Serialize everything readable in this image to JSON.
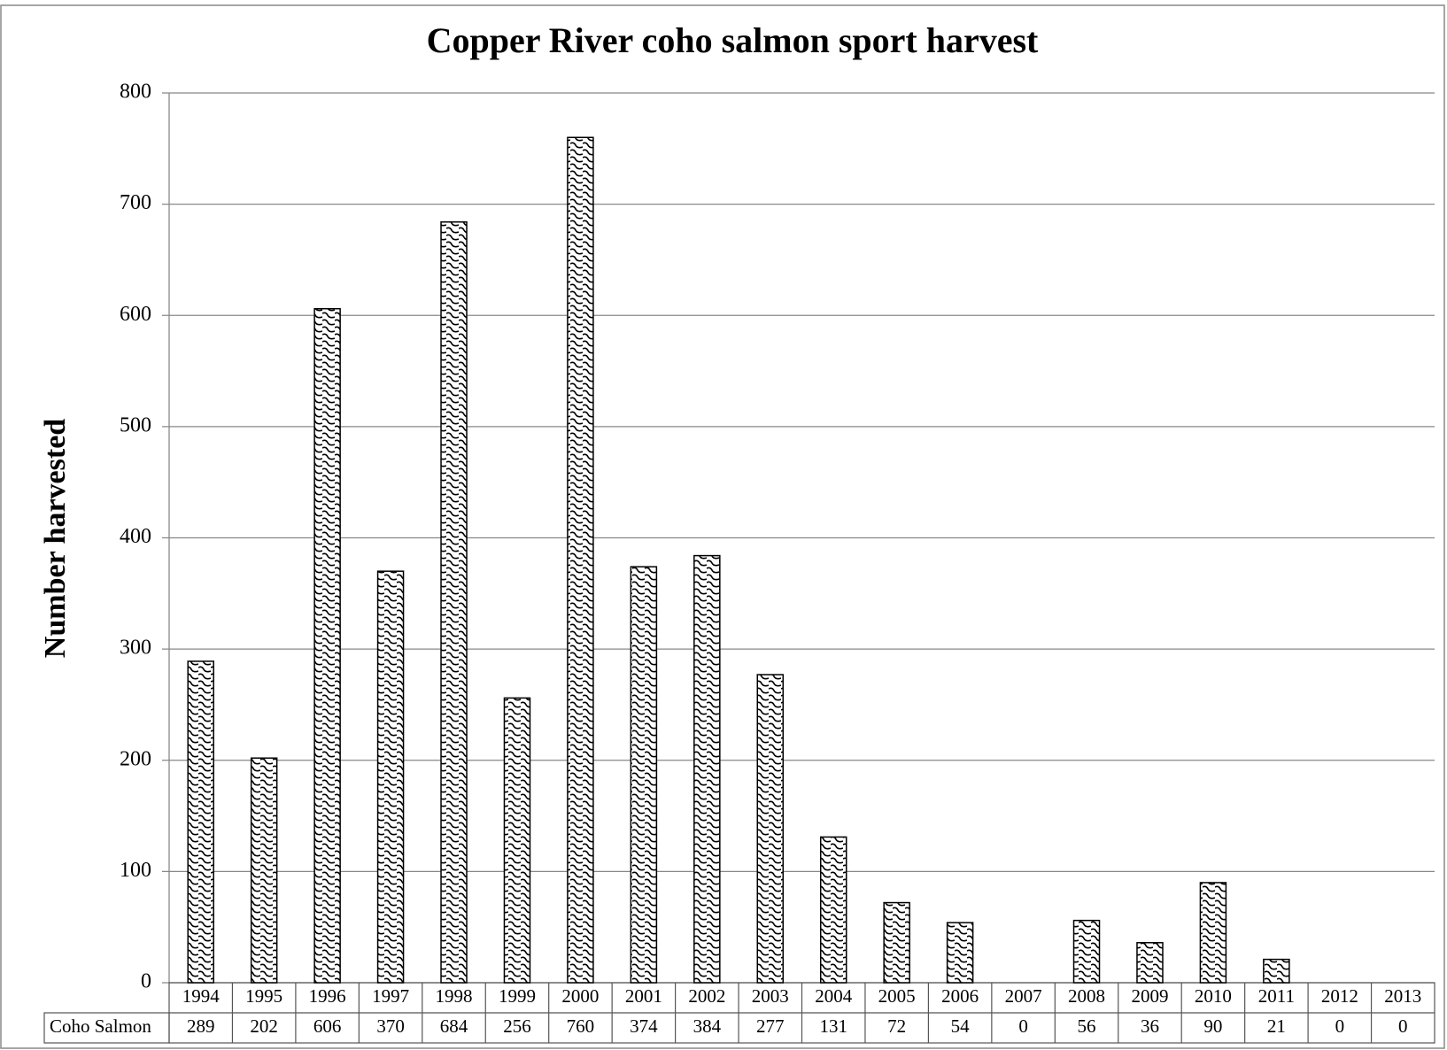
{
  "chart_data": {
    "type": "bar",
    "title": "Copper River coho salmon sport harvest",
    "y_label": "Number harvested",
    "categories": [
      "1994",
      "1995",
      "1996",
      "1997",
      "1998",
      "1999",
      "2000",
      "2001",
      "2002",
      "2003",
      "2004",
      "2005",
      "2006",
      "2007",
      "2008",
      "2009",
      "2010",
      "2011",
      "2012",
      "2013"
    ],
    "series": [
      {
        "name": "Coho Salmon",
        "color": "#000000",
        "values": [
          289,
          202,
          606,
          370,
          684,
          256,
          760,
          374,
          384,
          277,
          131,
          72,
          54,
          0,
          56,
          36,
          90,
          21,
          0,
          0
        ]
      }
    ],
    "ylim": [
      0,
      800
    ],
    "yticks": [
      0,
      100,
      200,
      300,
      400,
      500,
      600,
      700,
      800
    ],
    "grid": true
  }
}
